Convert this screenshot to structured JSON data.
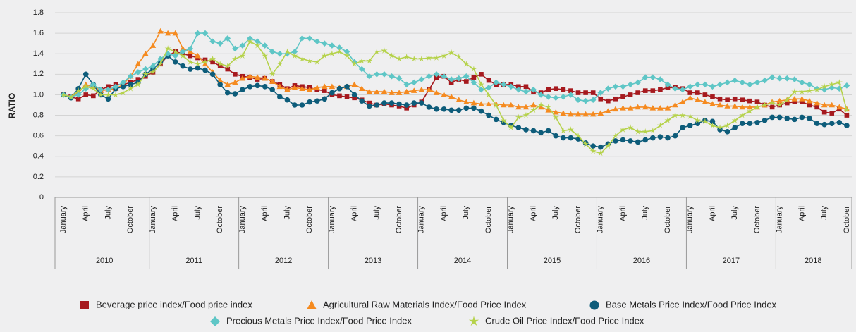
{
  "chart_data": {
    "type": "line",
    "y_label": "RATIO",
    "ylim": [
      0,
      1.8
    ],
    "yticks": [
      0,
      0.2,
      0.4,
      0.6,
      0.8,
      {
        "value": 1,
        "label": "1.0"
      },
      1.2,
      1.4,
      1.6,
      1.8
    ],
    "grid": true,
    "categories": [
      "January",
      null,
      null,
      "April",
      null,
      null,
      "July",
      null,
      null,
      "October",
      null,
      null,
      "January",
      null,
      null,
      "April",
      null,
      null,
      "July",
      null,
      null,
      "October",
      null,
      null,
      "January",
      null,
      null,
      "April",
      null,
      null,
      "July",
      null,
      null,
      "October",
      null,
      null,
      "January",
      null,
      null,
      "April",
      null,
      null,
      "July",
      null,
      null,
      "October",
      null,
      null,
      "January",
      null,
      null,
      "April",
      null,
      null,
      "July",
      null,
      null,
      "October",
      null,
      null,
      "January",
      null,
      null,
      "April",
      null,
      null,
      "July",
      null,
      null,
      "October",
      null,
      null,
      "January",
      null,
      null,
      "April",
      null,
      null,
      "July",
      null,
      null,
      "October",
      null,
      null,
      "January",
      null,
      null,
      "April",
      null,
      null,
      "July",
      null,
      null,
      "October",
      null,
      null,
      "January",
      null,
      null,
      "April",
      null,
      null,
      "July",
      null,
      null,
      "October"
    ],
    "x_groups": [
      "2010",
      "2011",
      "2012",
      "2013",
      "2014",
      "2015",
      "2016",
      "2017",
      "2018"
    ],
    "legend": "bottom",
    "series": [
      {
        "name": "Beverage price index/Food price index",
        "color": "#a6191e",
        "marker": "square",
        "values": [
          1.0,
          0.98,
          0.96,
          1.0,
          0.99,
          1.05,
          1.08,
          1.1,
          1.1,
          1.12,
          1.15,
          1.18,
          1.22,
          1.3,
          1.38,
          1.42,
          1.4,
          1.38,
          1.36,
          1.34,
          1.32,
          1.28,
          1.25,
          1.2,
          1.18,
          1.17,
          1.15,
          1.16,
          1.13,
          1.1,
          1.06,
          1.09,
          1.08,
          1.07,
          1.05,
          1.04,
          1.0,
          0.99,
          0.98,
          0.97,
          0.95,
          0.92,
          0.9,
          0.91,
          0.9,
          0.89,
          0.87,
          0.9,
          0.93,
          1.05,
          1.17,
          1.18,
          1.12,
          1.15,
          1.13,
          1.17,
          1.2,
          1.14,
          1.1,
          1.1,
          1.1,
          1.08,
          1.08,
          1.03,
          1.02,
          1.05,
          1.06,
          1.05,
          1.04,
          1.02,
          1.02,
          1.02,
          0.96,
          0.94,
          0.96,
          0.98,
          1.0,
          1.02,
          1.04,
          1.04,
          1.05,
          1.07,
          1.07,
          1.06,
          1.02,
          1.02,
          1.0,
          0.98,
          0.96,
          0.95,
          0.96,
          0.95,
          0.94,
          0.93,
          0.9,
          0.88,
          0.9,
          0.92,
          0.93,
          0.93,
          0.9,
          0.88,
          0.83,
          0.82,
          0.86,
          0.8
        ]
      },
      {
        "name": "Agricultural Raw Materials Index/Food Price Index",
        "color": "#f58a1f",
        "marker": "triangle",
        "values": [
          1.0,
          0.98,
          1.02,
          1.1,
          1.08,
          1.04,
          1.05,
          1.06,
          1.1,
          1.18,
          1.3,
          1.4,
          1.48,
          1.62,
          1.6,
          1.6,
          1.45,
          1.42,
          1.38,
          1.3,
          1.22,
          1.14,
          1.1,
          1.12,
          1.16,
          1.18,
          1.17,
          1.16,
          1.13,
          1.08,
          1.05,
          1.07,
          1.06,
          1.05,
          1.07,
          1.08,
          1.08,
          1.07,
          1.08,
          1.1,
          1.06,
          1.03,
          1.03,
          1.03,
          1.02,
          1.02,
          1.03,
          1.04,
          1.05,
          1.05,
          1.02,
          1.0,
          0.98,
          0.95,
          0.93,
          0.92,
          0.91,
          0.91,
          0.91,
          0.9,
          0.9,
          0.88,
          0.88,
          0.9,
          0.88,
          0.85,
          0.83,
          0.82,
          0.81,
          0.81,
          0.81,
          0.81,
          0.82,
          0.84,
          0.86,
          0.87,
          0.87,
          0.88,
          0.88,
          0.87,
          0.87,
          0.87,
          0.9,
          0.93,
          0.97,
          0.95,
          0.93,
          0.91,
          0.9,
          0.89,
          0.89,
          0.88,
          0.88,
          0.88,
          0.9,
          0.93,
          0.94,
          0.95,
          0.96,
          0.96,
          0.94,
          0.92,
          0.9,
          0.9,
          0.88,
          0.86
        ]
      },
      {
        "name": "Base Metals Price Index/Food Price Index",
        "color": "#0d5c7a",
        "marker": "circle",
        "values": [
          1.0,
          0.97,
          1.06,
          1.2,
          1.1,
          1.0,
          0.96,
          1.06,
          1.08,
          1.1,
          1.12,
          1.2,
          1.25,
          1.32,
          1.38,
          1.32,
          1.28,
          1.25,
          1.26,
          1.24,
          1.2,
          1.1,
          1.02,
          1.01,
          1.05,
          1.08,
          1.09,
          1.08,
          1.05,
          0.98,
          0.95,
          0.9,
          0.9,
          0.93,
          0.94,
          0.96,
          1.02,
          1.06,
          1.08,
          1.0,
          0.94,
          0.89,
          0.9,
          0.92,
          0.92,
          0.91,
          0.9,
          0.92,
          0.92,
          0.88,
          0.86,
          0.86,
          0.85,
          0.85,
          0.87,
          0.87,
          0.84,
          0.8,
          0.76,
          0.73,
          0.7,
          0.68,
          0.66,
          0.65,
          0.63,
          0.65,
          0.6,
          0.58,
          0.58,
          0.57,
          0.53,
          0.5,
          0.49,
          0.52,
          0.55,
          0.56,
          0.55,
          0.54,
          0.56,
          0.58,
          0.59,
          0.58,
          0.6,
          0.68,
          0.7,
          0.72,
          0.75,
          0.74,
          0.66,
          0.64,
          0.68,
          0.72,
          0.72,
          0.73,
          0.75,
          0.78,
          0.78,
          0.77,
          0.76,
          0.78,
          0.77,
          0.72,
          0.71,
          0.72,
          0.73,
          0.7
        ]
      },
      {
        "name": "Precious Metals Price Index/Food Price Index",
        "color": "#5ec6c6",
        "marker": "diamond",
        "values": [
          1.0,
          0.98,
          1.0,
          1.06,
          1.1,
          1.05,
          1.05,
          1.08,
          1.12,
          1.18,
          1.22,
          1.25,
          1.28,
          1.35,
          1.4,
          1.38,
          1.42,
          1.45,
          1.6,
          1.6,
          1.52,
          1.5,
          1.55,
          1.45,
          1.48,
          1.55,
          1.52,
          1.48,
          1.42,
          1.4,
          1.4,
          1.42,
          1.55,
          1.55,
          1.52,
          1.5,
          1.48,
          1.46,
          1.42,
          1.32,
          1.25,
          1.18,
          1.2,
          1.2,
          1.18,
          1.16,
          1.1,
          1.12,
          1.15,
          1.18,
          1.2,
          1.18,
          1.15,
          1.16,
          1.18,
          1.12,
          1.05,
          1.07,
          1.12,
          1.1,
          1.08,
          1.05,
          1.03,
          1.05,
          1.0,
          0.98,
          0.97,
          0.98,
          1.0,
          0.95,
          0.94,
          0.95,
          1.02,
          1.06,
          1.08,
          1.08,
          1.1,
          1.12,
          1.17,
          1.17,
          1.15,
          1.1,
          1.06,
          1.05,
          1.08,
          1.1,
          1.1,
          1.08,
          1.1,
          1.12,
          1.14,
          1.12,
          1.1,
          1.12,
          1.14,
          1.17,
          1.16,
          1.16,
          1.15,
          1.12,
          1.1,
          1.06,
          1.05,
          1.07,
          1.06,
          1.09
        ]
      },
      {
        "name": "Crude Oil Price Index/Food Price Index",
        "color": "#b5d24a",
        "marker": "star",
        "values": [
          1.0,
          0.98,
          1.04,
          1.08,
          1.06,
          1.0,
          1.0,
          1.0,
          1.02,
          1.06,
          1.1,
          1.2,
          1.22,
          1.3,
          1.45,
          1.42,
          1.38,
          1.32,
          1.3,
          1.32,
          1.35,
          1.3,
          1.28,
          1.35,
          1.38,
          1.52,
          1.48,
          1.38,
          1.2,
          1.3,
          1.42,
          1.38,
          1.35,
          1.33,
          1.32,
          1.38,
          1.4,
          1.42,
          1.38,
          1.3,
          1.33,
          1.33,
          1.42,
          1.43,
          1.38,
          1.35,
          1.37,
          1.35,
          1.35,
          1.36,
          1.36,
          1.38,
          1.41,
          1.37,
          1.3,
          1.25,
          1.1,
          1.0,
          0.9,
          0.75,
          0.68,
          0.78,
          0.8,
          0.85,
          0.9,
          0.88,
          0.78,
          0.65,
          0.66,
          0.6,
          0.52,
          0.45,
          0.43,
          0.5,
          0.6,
          0.66,
          0.68,
          0.64,
          0.64,
          0.65,
          0.7,
          0.75,
          0.8,
          0.8,
          0.79,
          0.75,
          0.74,
          0.7,
          0.68,
          0.7,
          0.75,
          0.8,
          0.84,
          0.88,
          0.9,
          0.92,
          0.9,
          0.95,
          1.03,
          1.03,
          1.04,
          1.05,
          1.08,
          1.1,
          1.12,
          0.85
        ]
      }
    ]
  }
}
